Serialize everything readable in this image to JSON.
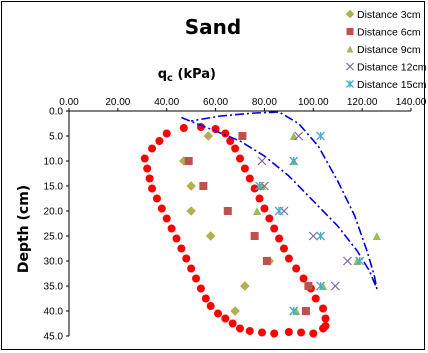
{
  "chart_data": {
    "type": "scatter",
    "title": "Sand",
    "xlabel_main": "q",
    "xlabel_sub": "c",
    "xlabel_unit": " (kPa)",
    "ylabel": "Depth (cm)",
    "xlim": [
      0,
      140
    ],
    "ylim": [
      0,
      45
    ],
    "x_ticks": [
      "0.00",
      "20.00",
      "40.00",
      "60.00",
      "80.00",
      "100.00",
      "120.00",
      "140.00"
    ],
    "y_ticks": [
      "0.0",
      "5.0",
      "10.0",
      "15.0",
      "20.0",
      "25.0",
      "30.0",
      "35.0",
      "40.0",
      "45.0"
    ],
    "legend_position": "top-right",
    "series": [
      {
        "name": "Distance 3cm",
        "marker": "diamond",
        "color": "#9BBB59",
        "edge": "#C8A040",
        "points": [
          [
            57,
            5
          ],
          [
            47,
            10
          ],
          [
            50,
            15
          ],
          [
            50,
            20
          ],
          [
            58,
            25
          ],
          [
            82,
            30
          ],
          [
            72,
            35
          ],
          [
            68,
            40
          ]
        ]
      },
      {
        "name": "Distance 6cm",
        "marker": "square",
        "color": "#C0504D",
        "points": [
          [
            71,
            5
          ],
          [
            49,
            10
          ],
          [
            55,
            15
          ],
          [
            65,
            20
          ],
          [
            76,
            25
          ],
          [
            81,
            30
          ],
          [
            98,
            35
          ],
          [
            97,
            40
          ]
        ]
      },
      {
        "name": "Distance 9cm",
        "marker": "triangle",
        "color": "#9BBB59",
        "points": [
          [
            92,
            5
          ],
          [
            92,
            10
          ],
          [
            79,
            15
          ],
          [
            77,
            20
          ],
          [
            126,
            25
          ],
          [
            118,
            30
          ],
          [
            104,
            35
          ],
          [
            93,
            40
          ]
        ]
      },
      {
        "name": "Distance 12cm",
        "marker": "x",
        "color": "#8064A2",
        "points": [
          [
            94,
            5
          ],
          [
            79,
            10
          ],
          [
            80,
            15
          ],
          [
            88,
            20
          ],
          [
            100,
            25
          ],
          [
            114,
            30
          ],
          [
            109,
            35
          ],
          [
            92,
            40
          ]
        ]
      },
      {
        "name": "Distance 15cm",
        "marker": "star",
        "color": "#4BACC6",
        "points": [
          [
            103,
            5
          ],
          [
            92,
            10
          ],
          [
            78,
            15
          ],
          [
            86,
            20
          ],
          [
            103,
            25
          ],
          [
            119,
            30
          ],
          [
            103,
            35
          ],
          [
            92,
            40
          ]
        ]
      }
    ],
    "annotations": {
      "red_dotted_outline": {
        "color": "#FF0000",
        "points": [
          [
            40,
            4.5
          ],
          [
            37,
            6
          ],
          [
            34,
            7.5
          ],
          [
            31,
            9.5
          ],
          [
            32,
            11.5
          ],
          [
            33,
            13.5
          ],
          [
            34,
            15.5
          ],
          [
            36,
            17.5
          ],
          [
            38,
            19.5
          ],
          [
            40,
            21.5
          ],
          [
            42,
            23.5
          ],
          [
            44,
            25.5
          ],
          [
            46,
            27.5
          ],
          [
            48,
            29.5
          ],
          [
            50,
            31.5
          ],
          [
            52,
            33.5
          ],
          [
            54,
            35.5
          ],
          [
            56,
            37.5
          ],
          [
            58,
            39
          ],
          [
            61,
            40.5
          ],
          [
            64,
            41.5
          ],
          [
            67,
            42.5
          ],
          [
            70,
            43.5
          ],
          [
            74,
            44
          ],
          [
            79,
            44.3
          ],
          [
            84,
            44.5
          ],
          [
            90,
            44.2
          ],
          [
            95,
            44.3
          ],
          [
            100,
            44.5
          ],
          [
            104,
            43.5
          ],
          [
            105,
            43
          ],
          [
            105,
            41.5
          ],
          [
            104,
            39.5
          ],
          [
            101,
            37.5
          ],
          [
            99,
            35.5
          ],
          [
            96,
            33.5
          ],
          [
            93,
            31.5
          ],
          [
            90,
            29.5
          ],
          [
            88,
            27.5
          ],
          [
            86,
            25.5
          ],
          [
            84,
            23.5
          ],
          [
            82,
            21.5
          ],
          [
            80,
            19.5
          ],
          [
            78,
            17.5
          ],
          [
            76,
            15.5
          ],
          [
            74,
            13.5
          ],
          [
            72,
            11.5
          ],
          [
            70,
            9.5
          ],
          [
            68,
            7.5
          ],
          [
            66,
            6
          ],
          [
            64,
            4.5
          ],
          [
            60,
            3.6
          ],
          [
            54,
            3.2
          ],
          [
            47,
            3.4
          ]
        ]
      },
      "blue_dashdot_curve": {
        "color": "#0000DD",
        "points": [
          [
            46,
            1.3
          ],
          [
            52,
            2.5
          ],
          [
            60,
            4
          ],
          [
            70,
            6
          ],
          [
            80,
            9
          ],
          [
            90,
            13
          ],
          [
            100,
            18
          ],
          [
            110,
            23
          ],
          [
            118,
            28
          ],
          [
            123,
            32
          ],
          [
            126,
            35.5
          ],
          [
            125,
            33
          ],
          [
            122,
            28
          ],
          [
            117,
            21
          ],
          [
            110,
            14
          ],
          [
            102,
            7
          ],
          [
            94,
            2.5
          ],
          [
            86,
            0.2
          ],
          [
            76,
            0.4
          ],
          [
            62,
            1
          ],
          [
            50,
            2
          ]
        ]
      }
    }
  }
}
